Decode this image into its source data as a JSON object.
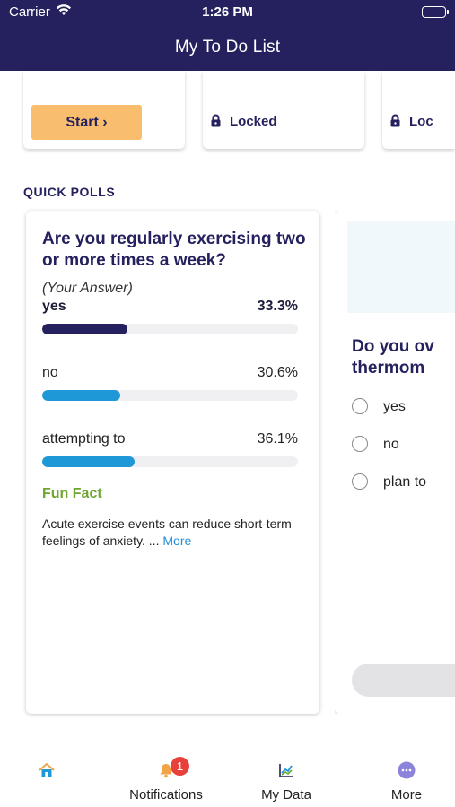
{
  "status_bar": {
    "carrier": "Carrier",
    "time": "1:26 PM"
  },
  "header": {
    "title": "My To Do List"
  },
  "todo_cards": [
    {
      "button_label": "Start ›"
    },
    {
      "locked_label": "Locked"
    },
    {
      "locked_label": "Loc"
    }
  ],
  "section": {
    "quick_polls": "QUICK POLLS"
  },
  "poll1": {
    "question": "Are you regularly exercising two or more times a week?",
    "your_answer": "(Your Answer)",
    "options": [
      {
        "label": "yes",
        "percent": "33.3%",
        "value": 33.3,
        "color": "#24215e",
        "selected": true
      },
      {
        "label": "no",
        "percent": "30.6%",
        "value": 30.6,
        "color": "#1e98d7"
      },
      {
        "label": "attempting to",
        "percent": "36.1%",
        "value": 36.1,
        "color": "#1e98d7"
      }
    ],
    "fun_fact_title": "Fun Fact",
    "fun_fact_text": "Acute exercise events can reduce short-term feelings of anxiety. ...",
    "more_label": "More"
  },
  "poll2": {
    "question_line1": "Do you ov",
    "question_line2": "thermom",
    "options": [
      "yes",
      "no",
      "plan to"
    ]
  },
  "tabbar": {
    "tabs": [
      {
        "label": "",
        "icon": "home-icon"
      },
      {
        "label": "Notifications",
        "icon": "bell-icon",
        "badge": "1"
      },
      {
        "label": "My Data",
        "icon": "chart-icon"
      },
      {
        "label": "More",
        "icon": "more-dots-icon"
      }
    ]
  },
  "colors": {
    "navy": "#24215e",
    "accent_orange": "#f8bd6d",
    "green": "#6fa532",
    "blue": "#1e98d7"
  }
}
